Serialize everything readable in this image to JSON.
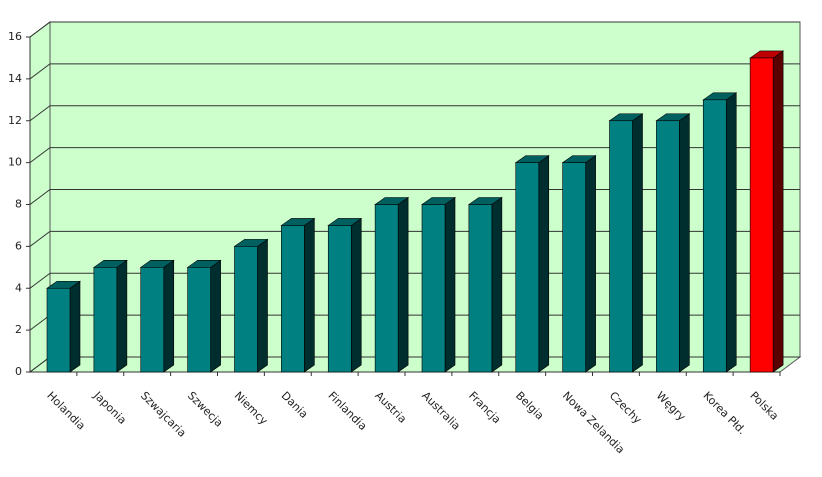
{
  "chart_data": {
    "type": "bar",
    "categories": [
      "Holandia",
      "Japonia",
      "Szwajcaria",
      "Szwecja",
      "Niemcy",
      "Dania",
      "Finlandia",
      "Austria",
      "Australia",
      "Francja",
      "Belgia",
      "Nowa Zelandia",
      "Czechy",
      "Węgry",
      "Korea Płd.",
      "Polska"
    ],
    "values": [
      4,
      5,
      5,
      5,
      6,
      7,
      7,
      8,
      8,
      8,
      10,
      10,
      12,
      12,
      13,
      15
    ],
    "colors": [
      "#008080",
      "#008080",
      "#008080",
      "#008080",
      "#008080",
      "#008080",
      "#008080",
      "#008080",
      "#008080",
      "#008080",
      "#008080",
      "#008080",
      "#008080",
      "#008080",
      "#008080",
      "#ff0000"
    ],
    "ylim": [
      0,
      16
    ],
    "yticks": [
      0,
      2,
      4,
      6,
      8,
      10,
      12,
      14,
      16
    ],
    "grid": true,
    "wall_color": "#ccffcc"
  }
}
